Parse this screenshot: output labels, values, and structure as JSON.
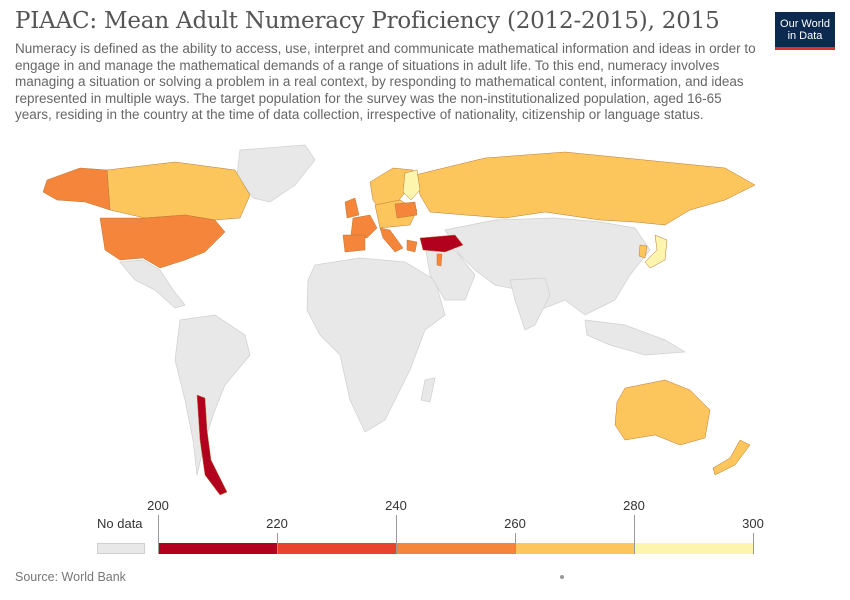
{
  "header": {
    "title": "PIAAC: Mean Adult Numeracy Proficiency (2012-2015), 2015",
    "subtitle": "Numeracy is defined as the ability to access, use, interpret and communicate mathematical information and ideas in order to engage in and manage the mathematical demands of a range of situations in adult life. To this end, numeracy involves managing a situation or solving a problem in a real context, by responding to mathematical content, information, and ideas represented in multiple ways. The target population for the survey was the non-institutionalized population, aged 16-65 years, residing in the country at the time of data collection, irrespective of nationality, citizenship or language status."
  },
  "logo": {
    "line1": "Our World",
    "line2": "in Data"
  },
  "legend": {
    "no_data_label": "No data",
    "ticks": [
      "200",
      "220",
      "240",
      "260",
      "280",
      "300"
    ],
    "bins": [
      {
        "from": 200,
        "to": 220,
        "color": "#b2001f"
      },
      {
        "from": 220,
        "to": 240,
        "color": "#e8432c"
      },
      {
        "from": 240,
        "to": 260,
        "color": "#f4853a"
      },
      {
        "from": 260,
        "to": 280,
        "color": "#fcc65c"
      },
      {
        "from": 280,
        "to": 300,
        "color": "#fdf5ad"
      }
    ],
    "no_data_color": "#e8e8e8"
  },
  "map_colors": {
    "no_data": "#e8e8e8",
    "band_200_220": "#b2001f",
    "band_240_260": "#f4853a",
    "band_260_280": "#fcc65c",
    "band_280_300": "#fdf5ad"
  },
  "footer": {
    "source": "Source: World Bank"
  }
}
